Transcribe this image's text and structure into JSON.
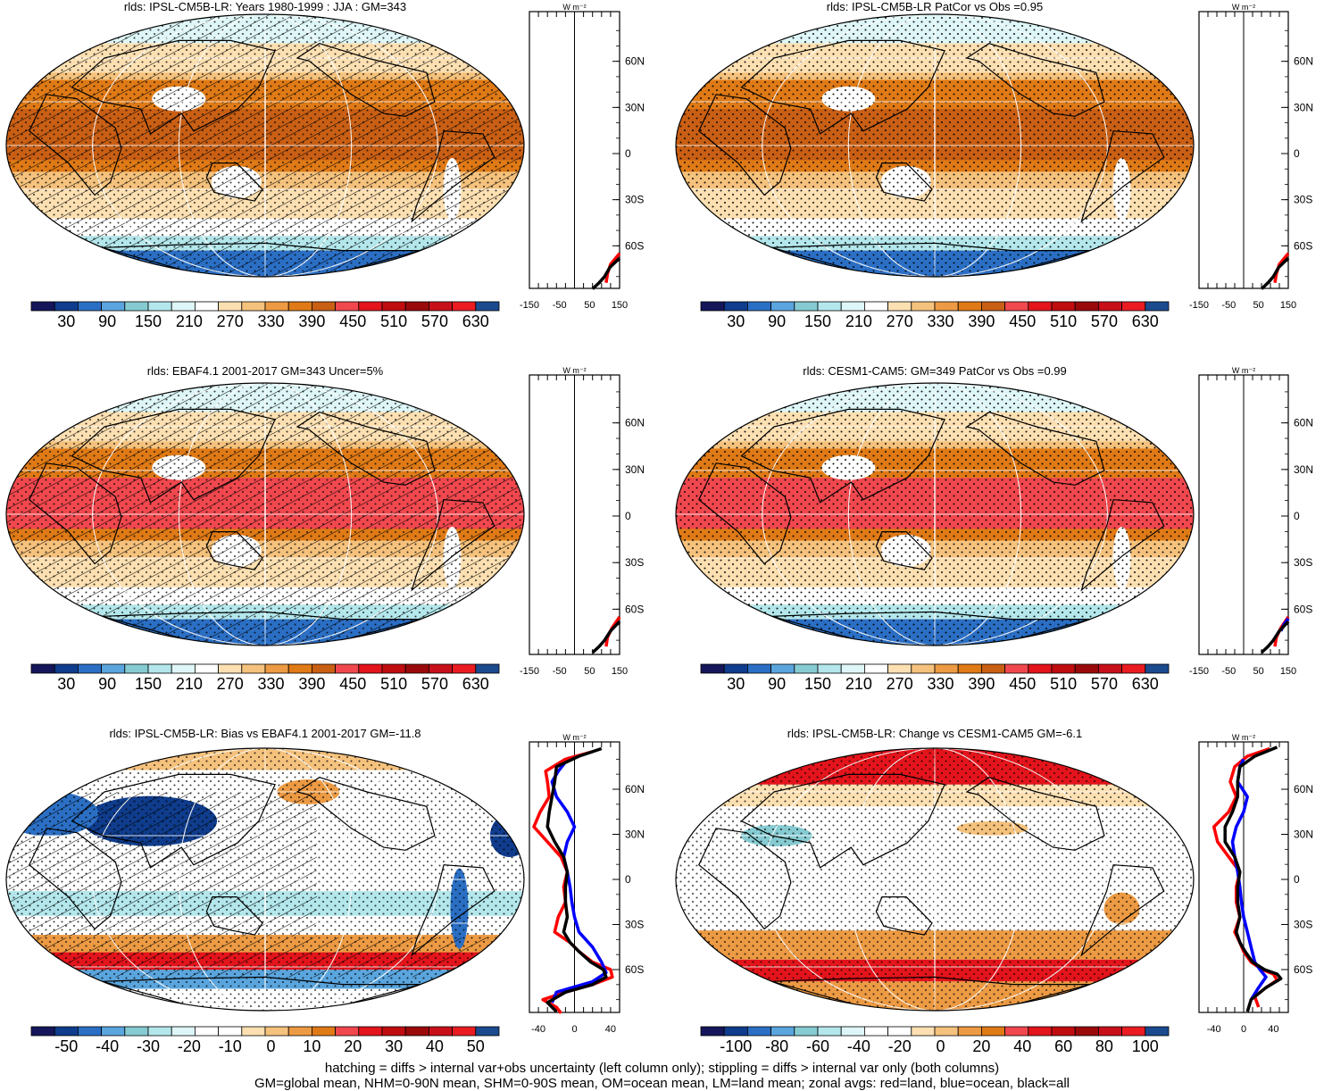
{
  "colors": {
    "mean_scale": [
      "#15165a",
      "#0f3c8c",
      "#2b6fc5",
      "#5aa5de",
      "#86cbd2",
      "#b3e7ec",
      "#def6f7",
      "#ffffff",
      "#fde0b2",
      "#f5c27d",
      "#ec9a43",
      "#df7a16",
      "#c95f14",
      "#f0484e",
      "#e3141b",
      "#c00d10",
      "#9a0a0b",
      "#c8101a",
      "#ea1c22",
      "#1b4a8e"
    ],
    "diff_scale": [
      "#15165a",
      "#0f3c8c",
      "#2b6fc5",
      "#5aa5de",
      "#86cbd2",
      "#b3e7ec",
      "#def6f7",
      "#ffffff",
      "#ffffff",
      "#fde0b2",
      "#f5c27d",
      "#ec9a43",
      "#df7a16",
      "#f0484e",
      "#e3141b",
      "#c00d10",
      "#9a0a0b",
      "#c8101a",
      "#ea1c22",
      "#1b4a8e"
    ],
    "land_line": "#ff0000",
    "ocean_line": "#0000ff",
    "all_line": "#000000"
  },
  "icons": {
    "hatching": "diagonal-hatch-pattern",
    "stippling": "dot-stipple-pattern"
  },
  "zonal_axis": {
    "units": "W m⁻²",
    "lat_labels": [
      "60N",
      "30N",
      "0",
      "30S",
      "60S"
    ],
    "lat_values": [
      60,
      30,
      0,
      -30,
      -60
    ]
  },
  "chart_data": [
    {
      "type": "heatmap",
      "id": "p1",
      "title": "rlds: IPSL-CM5B-LR: Years 1980-1999 : JJA : GM=343",
      "colorbar_labels": [
        "30",
        "90",
        "150",
        "210",
        "270",
        "330",
        "390",
        "450",
        "510",
        "570",
        "630"
      ],
      "field": "mean",
      "hatched": true,
      "hatch_region": "all",
      "stippled": "partial",
      "zonal": {
        "x_ticks": [
          "-150",
          "-50",
          "50",
          "150"
        ],
        "x_values": [
          -150,
          -50,
          50,
          150
        ],
        "xlim": [
          -150,
          150
        ],
        "zero": 0,
        "series": [
          {
            "name": "land",
            "x": [
              150,
              120,
              110,
              105
            ],
            "lat": [
              -65,
              -72,
              -78,
              -84
            ]
          },
          {
            "name": "all",
            "x": [
              150,
              118,
              100,
              82,
              60
            ],
            "lat": [
              -68,
              -74,
              -80,
              -84,
              -88
            ]
          }
        ]
      }
    },
    {
      "type": "heatmap",
      "id": "p2",
      "title": "rlds: IPSL-CM5B-LR PatCor vs Obs =0.95",
      "colorbar_labels": [
        "30",
        "90",
        "150",
        "210",
        "270",
        "330",
        "390",
        "450",
        "510",
        "570",
        "630"
      ],
      "field": "mean",
      "hatched": false,
      "stippled": "full",
      "zonal": {
        "x_ticks": [
          "-150",
          "-50",
          "50",
          "150"
        ],
        "x_values": [
          -150,
          -50,
          50,
          150
        ],
        "xlim": [
          -150,
          150
        ],
        "zero": 0,
        "series": [
          {
            "name": "land",
            "x": [
              150,
              120,
              110,
              105
            ],
            "lat": [
              -65,
              -72,
              -78,
              -84
            ]
          },
          {
            "name": "all",
            "x": [
              150,
              118,
              100,
              82,
              60
            ],
            "lat": [
              -68,
              -74,
              -80,
              -84,
              -88
            ]
          }
        ]
      }
    },
    {
      "type": "heatmap",
      "id": "p3",
      "title": "rlds: EBAF4.1 2001-2017 GM=343 Uncer=5%",
      "colorbar_labels": [
        "30",
        "90",
        "150",
        "210",
        "270",
        "330",
        "390",
        "450",
        "510",
        "570",
        "630"
      ],
      "field": "mean_obs",
      "hatched": true,
      "hatch_region": "all",
      "stippled": "partial",
      "zonal": {
        "x_ticks": [
          "-150",
          "-50",
          "50",
          "150"
        ],
        "x_values": [
          -150,
          -50,
          50,
          150
        ],
        "xlim": [
          -150,
          150
        ],
        "zero": 0,
        "series": [
          {
            "name": "land",
            "x": [
              150,
              125,
              110,
              105
            ],
            "lat": [
              -65,
              -72,
              -78,
              -84
            ]
          },
          {
            "name": "all",
            "x": [
              150,
              120,
              100,
              82,
              60
            ],
            "lat": [
              -68,
              -74,
              -80,
              -84,
              -88
            ]
          }
        ]
      }
    },
    {
      "type": "heatmap",
      "id": "p4",
      "title": "rlds: CESM1-CAM5: GM=349 PatCor vs Obs =0.99",
      "colorbar_labels": [
        "30",
        "90",
        "150",
        "210",
        "270",
        "330",
        "390",
        "450",
        "510",
        "570",
        "630"
      ],
      "field": "mean_obs",
      "hatched": false,
      "stippled": "full",
      "zonal": {
        "x_ticks": [
          "-150",
          "-50",
          "50",
          "150"
        ],
        "x_values": [
          -150,
          -50,
          50,
          150
        ],
        "xlim": [
          -150,
          150
        ],
        "zero": 0,
        "series": [
          {
            "name": "land",
            "x": [
              150,
              125,
              110,
              105
            ],
            "lat": [
              -65,
              -72,
              -78,
              -84
            ]
          },
          {
            "name": "ocean",
            "x": [
              150,
              135,
              125
            ],
            "lat": [
              -66,
              -70,
              -74
            ]
          },
          {
            "name": "all",
            "x": [
              150,
              120,
              100,
              82,
              60
            ],
            "lat": [
              -68,
              -74,
              -80,
              -84,
              -88
            ]
          }
        ]
      }
    },
    {
      "type": "heatmap",
      "id": "p5",
      "title": "rlds: IPSL-CM5B-LR: Bias vs EBAF4.1 2001-2017 GM=-11.8",
      "colorbar_labels": [
        "-50",
        "-40",
        "-30",
        "-20",
        "-10",
        "0",
        "10",
        "20",
        "30",
        "40",
        "50"
      ],
      "field": "bias",
      "hatched": true,
      "hatch_region": "partial",
      "stippled": "partial",
      "zonal": {
        "x_ticks": [
          "-40",
          "0",
          "40"
        ],
        "x_values": [
          -40,
          0,
          40
        ],
        "xlim": [
          -50,
          50
        ],
        "zero": 0,
        "series": [
          {
            "name": "land",
            "x": [
              20,
              -10,
              -32,
              -30,
              -28,
              -38,
              -45,
              -30,
              -15,
              -8,
              -12,
              -10,
              -18,
              -22,
              -5,
              5,
              20,
              40,
              42,
              20,
              -10,
              -35,
              -20,
              -15
            ],
            "lat": [
              85,
              80,
              72,
              65,
              55,
              45,
              35,
              25,
              15,
              5,
              -5,
              -15,
              -25,
              -35,
              -42,
              -48,
              -55,
              -60,
              -65,
              -70,
              -75,
              -80,
              -85,
              -89
            ]
          },
          {
            "name": "ocean",
            "x": [
              -10,
              -18,
              -25,
              -20,
              -8,
              0,
              -8,
              -12,
              -8,
              -5,
              -3,
              0,
              5,
              20,
              30,
              35,
              20,
              -20,
              -25
            ],
            "lat": [
              78,
              72,
              65,
              55,
              45,
              35,
              25,
              15,
              5,
              -5,
              -15,
              -25,
              -35,
              -45,
              -55,
              -62,
              -68,
              -75,
              -82
            ]
          },
          {
            "name": "all",
            "x": [
              30,
              5,
              -20,
              -22,
              -25,
              -28,
              -30,
              -22,
              -12,
              -8,
              -10,
              -10,
              -8,
              -12,
              -5,
              5,
              18,
              32,
              35,
              20,
              -10,
              -30,
              -20
            ],
            "lat": [
              87,
              82,
              75,
              65,
              55,
              45,
              35,
              25,
              15,
              5,
              -5,
              -15,
              -25,
              -35,
              -42,
              -48,
              -55,
              -60,
              -65,
              -70,
              -75,
              -82,
              -88
            ]
          }
        ]
      }
    },
    {
      "type": "heatmap",
      "id": "p6",
      "title": "rlds: IPSL-CM5B-LR: Change vs CESM1-CAM5 GM=-6.1",
      "colorbar_labels": [
        "-100",
        "-80",
        "-60",
        "-40",
        "-20",
        "0",
        "20",
        "40",
        "60",
        "80",
        "100"
      ],
      "field": "change",
      "hatched": false,
      "stippled": "partial",
      "zonal": {
        "x_ticks": [
          "-40",
          "0",
          "40"
        ],
        "x_values": [
          -40,
          0,
          40
        ],
        "xlim": [
          -60,
          60
        ],
        "zero": 0,
        "series": [
          {
            "name": "land",
            "x": [
              35,
              5,
              -12,
              -18,
              -10,
              -20,
              -40,
              -35,
              -20,
              -5,
              -10,
              -10,
              -5,
              -12,
              -5,
              0,
              10,
              25,
              40,
              45,
              30,
              15,
              20
            ],
            "lat": [
              87,
              82,
              75,
              65,
              55,
              45,
              35,
              25,
              15,
              5,
              -5,
              -15,
              -25,
              -35,
              -42,
              -48,
              -55,
              -60,
              -63,
              -67,
              -72,
              -78,
              -85
            ]
          },
          {
            "name": "ocean",
            "x": [
              0,
              -5,
              -8,
              5,
              0,
              -10,
              -15,
              -12,
              -8,
              -5,
              -3,
              0,
              5,
              10,
              15,
              22,
              30,
              20,
              10
            ],
            "lat": [
              80,
              75,
              65,
              55,
              45,
              35,
              25,
              15,
              5,
              -5,
              -15,
              -25,
              -35,
              -45,
              -55,
              -60,
              -65,
              -72,
              -80
            ]
          },
          {
            "name": "all",
            "x": [
              45,
              15,
              -5,
              -8,
              -8,
              -15,
              -25,
              -25,
              -12,
              -5,
              -8,
              -8,
              -5,
              -10,
              -5,
              2,
              12,
              28,
              45,
              50,
              30,
              10,
              5
            ],
            "lat": [
              88,
              82,
              75,
              65,
              55,
              45,
              35,
              25,
              15,
              5,
              -5,
              -15,
              -25,
              -35,
              -42,
              -48,
              -55,
              -60,
              -63,
              -66,
              -72,
              -80,
              -88
            ]
          }
        ]
      }
    }
  ],
  "footer": {
    "line1": "hatching = diffs > internal var+obs uncertainty (left column only); stippling = diffs > internal var only (both columns)",
    "line2": "GM=global mean, NHM=0-90N mean, SHM=0-90S mean, OM=ocean mean, LM=land mean; zonal avgs: red=land, blue=ocean, black=all"
  }
}
